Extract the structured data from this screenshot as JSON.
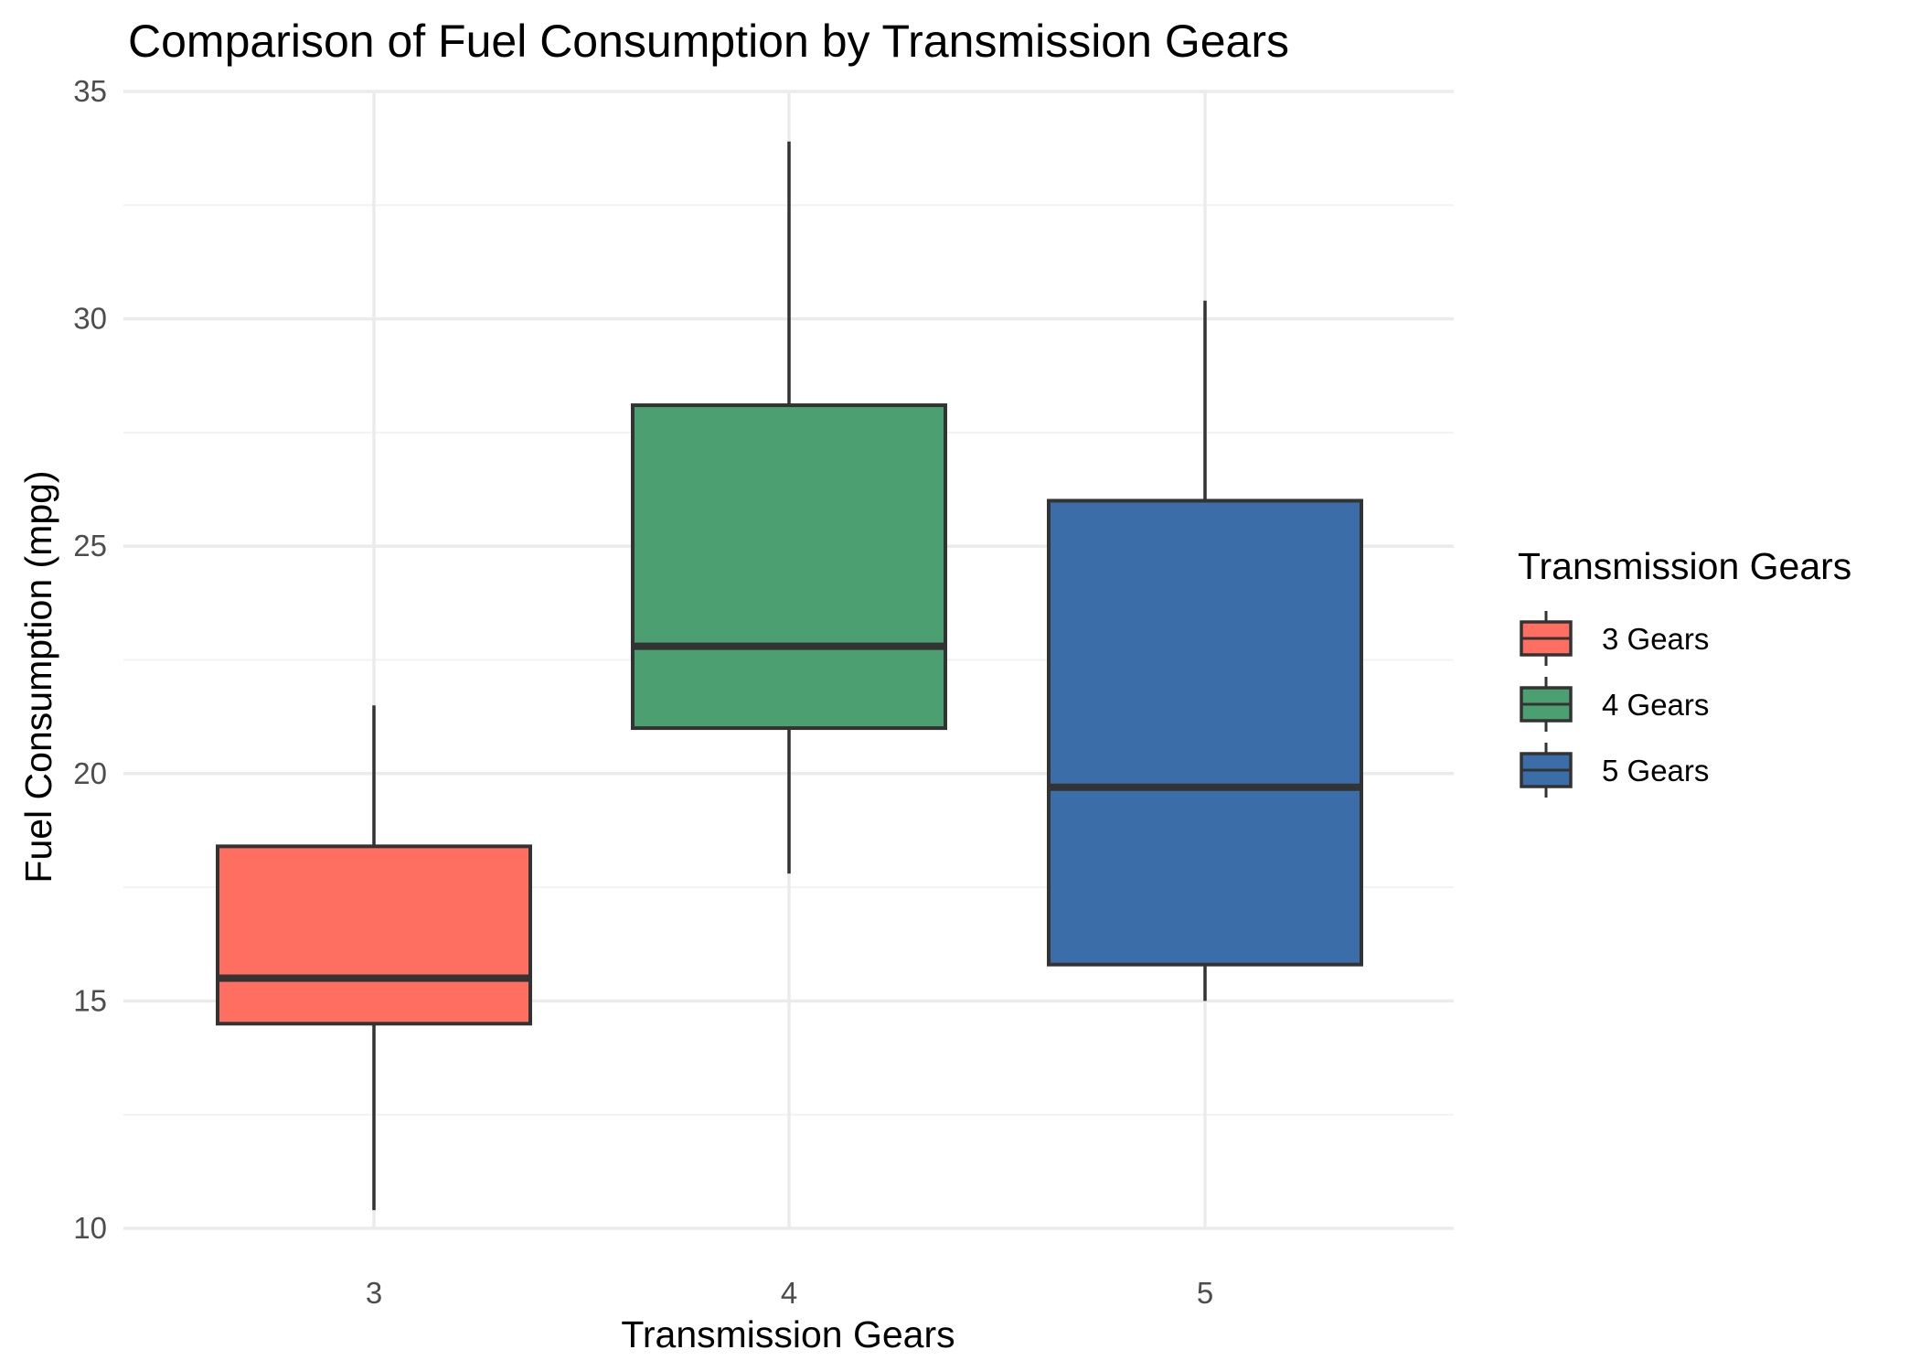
{
  "chart_data": {
    "type": "box",
    "title": "Comparison of Fuel Consumption by Transmission Gears",
    "xlabel": "Transmission Gears",
    "ylabel": "Fuel Consumption (mpg)",
    "categories": [
      "3",
      "4",
      "5"
    ],
    "ylim": [
      9.3,
      35.3
    ],
    "yticks": [
      "10",
      "15",
      "20",
      "25",
      "30",
      "35"
    ],
    "grid": true,
    "legend": {
      "title": "Transmission Gears",
      "position": "right",
      "entries": [
        "3 Gears",
        "4 Gears",
        "5 Gears"
      ]
    },
    "series": [
      {
        "category": "3",
        "legend_label": "3 Gears",
        "color": "#ff6f61",
        "min": 10.4,
        "q1": 14.5,
        "median": 15.5,
        "q3": 18.4,
        "max": 21.5
      },
      {
        "category": "4",
        "legend_label": "4 Gears",
        "color": "#4c9f70",
        "min": 17.8,
        "q1": 21.0,
        "median": 22.8,
        "q3": 28.1,
        "max": 33.9
      },
      {
        "category": "5",
        "legend_label": "5 Gears",
        "color": "#3b6ea8",
        "min": 15.0,
        "q1": 15.8,
        "median": 19.7,
        "q3": 26.0,
        "max": 30.4
      }
    ]
  }
}
